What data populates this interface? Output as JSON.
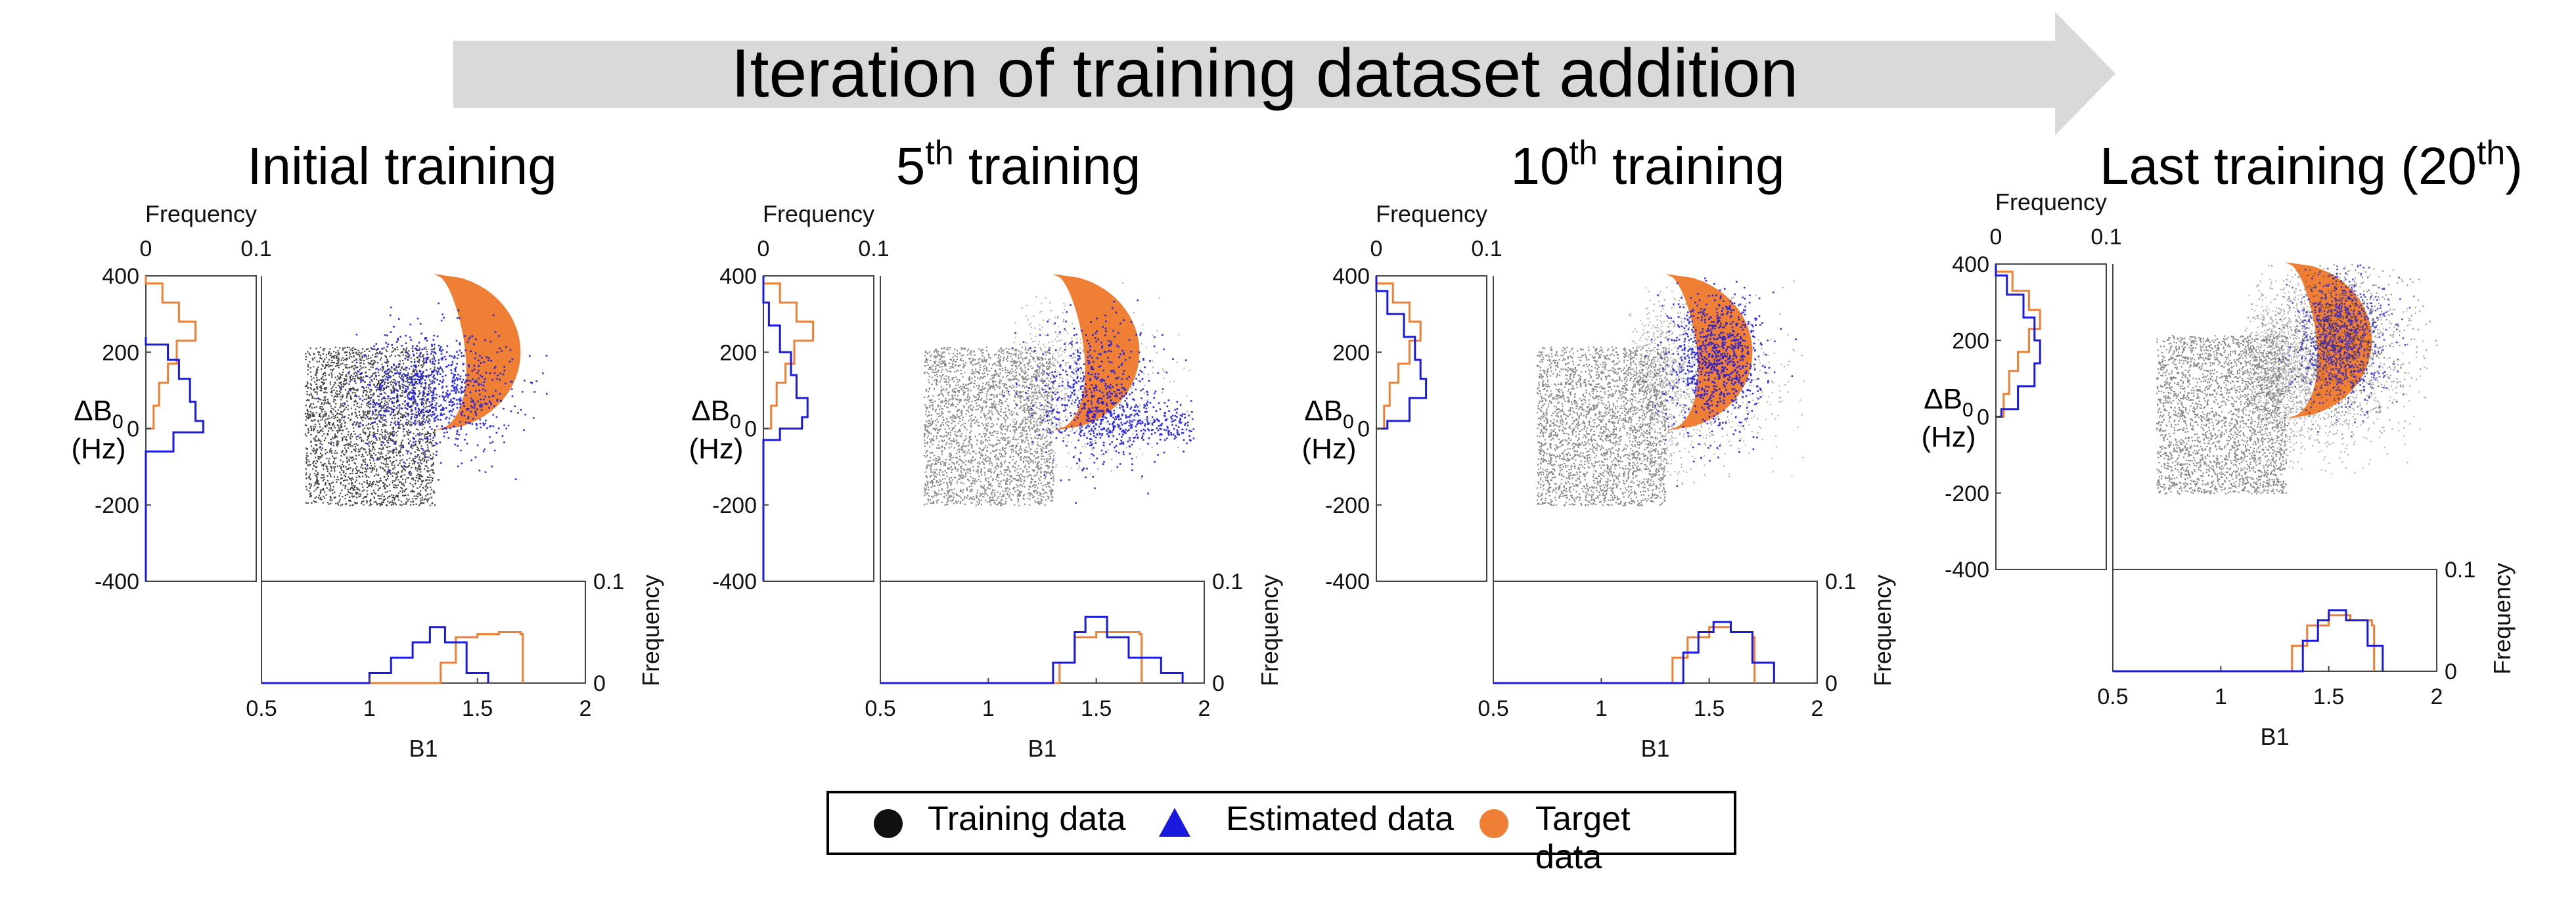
{
  "banner": {
    "text": "Iteration of training dataset addition"
  },
  "legend": {
    "training": "Training data",
    "estimated": "Estimated data",
    "target": "Target data"
  },
  "colors": {
    "training": "#111111",
    "estimated": "#1a1adf",
    "target": "#ee7f35",
    "banner": "#d9d9d9"
  },
  "chart_data": [
    {
      "type": "scatter",
      "title": "Initial training",
      "title_base": "Initial training",
      "title_sup": "",
      "title_tail": "",
      "xlabel": "B1",
      "ylabel": "ΔB0 (Hz)",
      "xlim": [
        0.5,
        2
      ],
      "ylim": [
        -400,
        400
      ],
      "xticks": [
        "0.5",
        "1",
        "1.5",
        "2"
      ],
      "yticks": [
        "-400",
        "-200",
        "0",
        "200",
        "400"
      ],
      "marginal_label": "Frequency",
      "marginal_ticks": [
        "0",
        "0.1"
      ],
      "training_region": {
        "b1": [
          0.7,
          1.3
        ],
        "db0": [
          -200,
          215
        ]
      },
      "target_region": {
        "b1_min": 1.3,
        "b1_max": 1.7,
        "db0": [
          -5,
          405
        ]
      },
      "estimated_cloud": {
        "b1_center": 1.3,
        "db0_center": 100,
        "b1_spread": 0.18,
        "db0_spread": 80
      },
      "hist_b1_target": [
        [
          0.5,
          0
        ],
        [
          1.25,
          0
        ],
        [
          1.33,
          0.02
        ],
        [
          1.4,
          0.045
        ],
        [
          1.5,
          0.048
        ],
        [
          1.6,
          0.05
        ],
        [
          1.7,
          0.048
        ],
        [
          1.71,
          0
        ]
      ],
      "hist_b1_estimated": [
        [
          0.5,
          0
        ],
        [
          0.8,
          0
        ],
        [
          1.0,
          0.01
        ],
        [
          1.1,
          0.025
        ],
        [
          1.2,
          0.04
        ],
        [
          1.28,
          0.055
        ],
        [
          1.35,
          0.04
        ],
        [
          1.45,
          0.01
        ],
        [
          1.55,
          0
        ]
      ],
      "hist_db0_target": [
        [
          400,
          0
        ],
        [
          380,
          0.015
        ],
        [
          330,
          0.03
        ],
        [
          280,
          0.045
        ],
        [
          230,
          0.028
        ],
        [
          170,
          0.02
        ],
        [
          120,
          0.012
        ],
        [
          60,
          0.007
        ],
        [
          0,
          0
        ]
      ],
      "hist_db0_estimated": [
        [
          240,
          0
        ],
        [
          220,
          0.02
        ],
        [
          180,
          0.03
        ],
        [
          130,
          0.04
        ],
        [
          70,
          0.045
        ],
        [
          20,
          0.052
        ],
        [
          -10,
          0.025
        ],
        [
          -60,
          0
        ],
        [
          -400,
          0
        ]
      ]
    },
    {
      "type": "scatter",
      "title": "5th training",
      "title_base": "5",
      "title_sup": "th",
      "title_tail": " training",
      "xlabel": "B1",
      "ylabel": "ΔB0 (Hz)",
      "xlim": [
        0.5,
        2
      ],
      "ylim": [
        -400,
        400
      ],
      "xticks": [
        "0.5",
        "1",
        "1.5",
        "2"
      ],
      "yticks": [
        "-400",
        "-200",
        "0",
        "200",
        "400"
      ],
      "marginal_label": "Frequency",
      "marginal_ticks": [
        "0",
        "0.1"
      ],
      "training_region": {
        "b1": [
          0.7,
          1.3
        ],
        "db0": [
          -200,
          215
        ]
      },
      "target_region": {
        "b1_min": 1.3,
        "b1_max": 1.7,
        "db0": [
          -5,
          405
        ]
      },
      "estimated_cloud": {
        "b1_center": 1.5,
        "db0_center": 90,
        "b1_spread": 0.14,
        "db0_spread": 90
      },
      "hist_b1_target": [
        [
          0.5,
          0
        ],
        [
          1.25,
          0
        ],
        [
          1.33,
          0.02
        ],
        [
          1.4,
          0.045
        ],
        [
          1.5,
          0.05
        ],
        [
          1.6,
          0.05
        ],
        [
          1.7,
          0.048
        ],
        [
          1.71,
          0
        ]
      ],
      "hist_b1_estimated": [
        [
          0.5,
          0
        ],
        [
          1.2,
          0
        ],
        [
          1.3,
          0.02
        ],
        [
          1.4,
          0.05
        ],
        [
          1.45,
          0.065
        ],
        [
          1.55,
          0.045
        ],
        [
          1.65,
          0.025
        ],
        [
          1.8,
          0.01
        ],
        [
          1.9,
          0
        ]
      ],
      "hist_db0_target": [
        [
          400,
          0
        ],
        [
          380,
          0.015
        ],
        [
          330,
          0.03
        ],
        [
          280,
          0.045
        ],
        [
          230,
          0.028
        ],
        [
          170,
          0.02
        ],
        [
          120,
          0.012
        ],
        [
          60,
          0.007
        ],
        [
          0,
          0
        ]
      ],
      "hist_db0_estimated": [
        [
          400,
          0
        ],
        [
          330,
          0.005
        ],
        [
          270,
          0.015
        ],
        [
          200,
          0.025
        ],
        [
          140,
          0.03
        ],
        [
          80,
          0.04
        ],
        [
          30,
          0.035
        ],
        [
          0,
          0.015
        ],
        [
          -30,
          0
        ],
        [
          -400,
          0
        ]
      ]
    },
    {
      "type": "scatter",
      "title": "10th training",
      "title_base": "10",
      "title_sup": "th",
      "title_tail": " training",
      "xlabel": "B1",
      "ylabel": "ΔB0 (Hz)",
      "xlim": [
        0.5,
        2
      ],
      "ylim": [
        -400,
        400
      ],
      "xticks": [
        "0.5",
        "1",
        "1.5",
        "2"
      ],
      "yticks": [
        "-400",
        "-200",
        "0",
        "200",
        "400"
      ],
      "marginal_label": "Frequency",
      "marginal_ticks": [
        "0",
        "0.1"
      ],
      "training_region": {
        "b1": [
          0.7,
          1.3
        ],
        "db0": [
          -200,
          215
        ]
      },
      "target_region": {
        "b1_min": 1.3,
        "b1_max": 1.7,
        "db0": [
          -5,
          405
        ]
      },
      "estimated_cloud": {
        "b1_center": 1.52,
        "db0_center": 180,
        "b1_spread": 0.11,
        "db0_spread": 90
      },
      "hist_b1_target": [
        [
          0.5,
          0
        ],
        [
          1.25,
          0
        ],
        [
          1.33,
          0.025
        ],
        [
          1.4,
          0.045
        ],
        [
          1.5,
          0.055
        ],
        [
          1.6,
          0.05
        ],
        [
          1.7,
          0.045
        ],
        [
          1.71,
          0
        ]
      ],
      "hist_b1_estimated": [
        [
          0.5,
          0
        ],
        [
          1.3,
          0
        ],
        [
          1.38,
          0.03
        ],
        [
          1.45,
          0.05
        ],
        [
          1.52,
          0.06
        ],
        [
          1.6,
          0.05
        ],
        [
          1.7,
          0.02
        ],
        [
          1.8,
          0
        ]
      ],
      "hist_db0_target": [
        [
          400,
          0
        ],
        [
          380,
          0.015
        ],
        [
          330,
          0.03
        ],
        [
          280,
          0.04
        ],
        [
          230,
          0.03
        ],
        [
          170,
          0.02
        ],
        [
          120,
          0.012
        ],
        [
          60,
          0.007
        ],
        [
          0,
          0
        ]
      ],
      "hist_db0_estimated": [
        [
          400,
          0
        ],
        [
          360,
          0.01
        ],
        [
          300,
          0.025
        ],
        [
          240,
          0.035
        ],
        [
          180,
          0.04
        ],
        [
          130,
          0.045
        ],
        [
          80,
          0.03
        ],
        [
          20,
          0.01
        ],
        [
          0,
          0
        ]
      ]
    },
    {
      "type": "scatter",
      "title": "Last training (20th)",
      "title_base": "Last training (20",
      "title_sup": "th",
      "title_tail": ")",
      "xlabel": "B1",
      "ylabel": "ΔB0 (Hz)",
      "xlim": [
        0.5,
        2
      ],
      "ylim": [
        -400,
        400
      ],
      "xticks": [
        "0.5",
        "1",
        "1.5",
        "2"
      ],
      "yticks": [
        "-400",
        "-200",
        "0",
        "200",
        "400"
      ],
      "marginal_label": "Frequency",
      "marginal_ticks": [
        "0",
        "0.1"
      ],
      "training_region": {
        "b1": [
          0.7,
          1.3
        ],
        "db0": [
          -200,
          215
        ]
      },
      "target_region": {
        "b1_min": 1.3,
        "b1_max": 1.7,
        "db0": [
          -5,
          405
        ]
      },
      "estimated_cloud": {
        "b1_center": 1.55,
        "db0_center": 210,
        "b1_spread": 0.1,
        "db0_spread": 85
      },
      "hist_b1_target": [
        [
          0.5,
          0
        ],
        [
          1.25,
          0
        ],
        [
          1.33,
          0.025
        ],
        [
          1.4,
          0.045
        ],
        [
          1.5,
          0.055
        ],
        [
          1.6,
          0.05
        ],
        [
          1.7,
          0.045
        ],
        [
          1.71,
          0
        ]
      ],
      "hist_b1_estimated": [
        [
          0.5,
          0
        ],
        [
          1.3,
          0
        ],
        [
          1.38,
          0.03
        ],
        [
          1.45,
          0.05
        ],
        [
          1.5,
          0.06
        ],
        [
          1.58,
          0.05
        ],
        [
          1.68,
          0.025
        ],
        [
          1.75,
          0
        ]
      ],
      "hist_db0_target": [
        [
          400,
          0
        ],
        [
          380,
          0.015
        ],
        [
          330,
          0.03
        ],
        [
          280,
          0.04
        ],
        [
          230,
          0.03
        ],
        [
          170,
          0.02
        ],
        [
          120,
          0.012
        ],
        [
          60,
          0.007
        ],
        [
          0,
          0
        ]
      ],
      "hist_db0_estimated": [
        [
          400,
          0
        ],
        [
          370,
          0.01
        ],
        [
          320,
          0.025
        ],
        [
          260,
          0.035
        ],
        [
          200,
          0.04
        ],
        [
          140,
          0.035
        ],
        [
          80,
          0.02
        ],
        [
          20,
          0.005
        ],
        [
          0,
          0
        ]
      ]
    }
  ]
}
